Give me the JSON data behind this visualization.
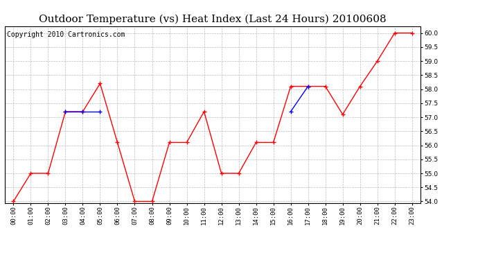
{
  "title": "Outdoor Temperature (vs) Heat Index (Last 24 Hours) 20100608",
  "copyright_text": "Copyright 2010 Cartronics.com",
  "x_labels": [
    "00:00",
    "01:00",
    "02:00",
    "03:00",
    "04:00",
    "05:00",
    "06:00",
    "07:00",
    "08:00",
    "09:00",
    "10:00",
    "11:00",
    "12:00",
    "13:00",
    "14:00",
    "15:00",
    "16:00",
    "17:00",
    "18:00",
    "19:00",
    "20:00",
    "21:00",
    "22:00",
    "23:00"
  ],
  "temp_red": [
    54.0,
    55.0,
    55.0,
    57.2,
    57.2,
    58.2,
    56.1,
    54.0,
    54.0,
    56.1,
    56.1,
    57.2,
    55.0,
    55.0,
    56.1,
    56.1,
    58.1,
    58.1,
    58.1,
    57.1,
    58.1,
    59.0,
    60.0,
    60.0
  ],
  "ylim_min": 54.0,
  "ylim_max": 60.25,
  "yticks": [
    54.0,
    54.5,
    55.0,
    55.5,
    56.0,
    56.5,
    57.0,
    57.5,
    58.0,
    58.5,
    59.0,
    59.5,
    60.0
  ],
  "blue_segments": [
    {
      "x": [
        3,
        4,
        5
      ],
      "y": [
        57.2,
        57.2,
        57.2
      ]
    },
    {
      "x": [
        16,
        17
      ],
      "y": [
        57.2,
        58.1
      ]
    }
  ],
  "line_color_red": "#FF0000",
  "line_color_blue": "#0000FF",
  "marker": "+",
  "grid_color": "#BBBBBB",
  "bg_color": "#FFFFFF",
  "title_fontsize": 11,
  "copyright_fontsize": 7,
  "tick_fontsize": 6.5,
  "fig_width": 6.9,
  "fig_height": 3.75,
  "dpi": 100
}
